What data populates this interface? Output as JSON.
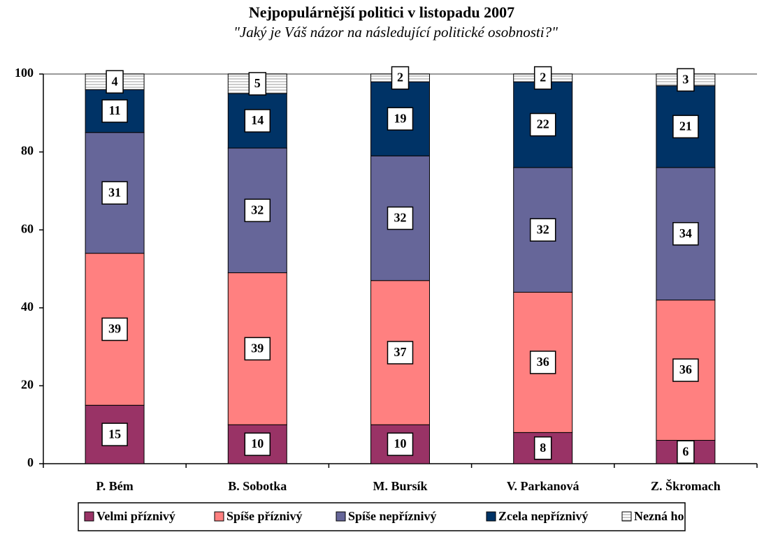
{
  "chart_data": {
    "type": "stacked_bar",
    "title": "Nejpopulárnější politici v listopadu 2007",
    "subtitle": "\"Jaký je Váš názor na následující politické osobnosti?\"",
    "categories": [
      "P. Bém",
      "B. Sobotka",
      "M. Bursík",
      "V. Parkanová",
      "Z. Škromach"
    ],
    "series": [
      {
        "name": "Velmi příznivý",
        "color": "#993366",
        "values": [
          15,
          10,
          10,
          8,
          6
        ]
      },
      {
        "name": "Spíše příznivý",
        "color": "#FF8080",
        "values": [
          39,
          39,
          37,
          36,
          36
        ]
      },
      {
        "name": "Spíše nepříznivý",
        "color": "#666699",
        "values": [
          31,
          32,
          32,
          32,
          34
        ]
      },
      {
        "name": "Zcela nepříznivý",
        "color": "#003366",
        "values": [
          11,
          14,
          19,
          22,
          21
        ]
      },
      {
        "name": "Nezná ho",
        "color": "#FFFFFF",
        "pattern": "horizontal-stripes",
        "values": [
          4,
          5,
          2,
          2,
          3
        ]
      }
    ],
    "ylim": [
      0,
      100
    ],
    "yticks": [
      0,
      20,
      40,
      60,
      80,
      100
    ],
    "grid": false,
    "legend": "bottom"
  }
}
